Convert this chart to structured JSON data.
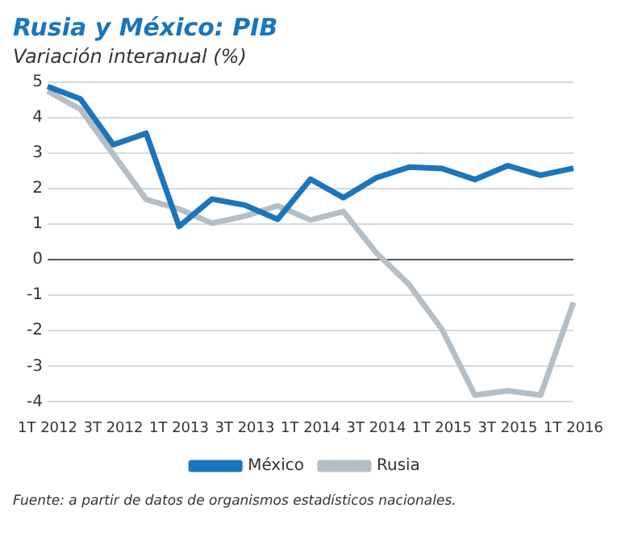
{
  "chart_data": {
    "type": "line",
    "title": "Rusia y México: PIB",
    "subtitle": "Variación interanual (%)",
    "categories": [
      "1T 2012",
      null,
      "3T 2012",
      null,
      "1T 2013",
      null,
      "3T 2013",
      null,
      "1T 2014",
      null,
      "3T 2014",
      null,
      "1T 2015",
      null,
      "3T 2015",
      null,
      "1T 2016"
    ],
    "series": [
      {
        "name": "México",
        "color": "#1a75bc",
        "values": [
          4.88,
          4.53,
          3.24,
          3.56,
          0.94,
          1.71,
          1.54,
          1.14,
          2.27,
          1.75,
          2.31,
          2.61,
          2.57,
          2.26,
          2.65,
          2.38,
          2.58
        ]
      },
      {
        "name": "Rusia",
        "color": "#b4bec4",
        "values": [
          4.75,
          4.24,
          2.97,
          1.7,
          1.43,
          1.03,
          1.23,
          1.52,
          1.12,
          1.36,
          0.2,
          -0.7,
          -1.96,
          -3.81,
          -3.69,
          -3.81,
          -1.2
        ]
      }
    ],
    "ylim": [
      -4,
      5
    ],
    "yticks": [
      -4,
      -3,
      -2,
      -1,
      0,
      1,
      2,
      3,
      4,
      5
    ],
    "grid": "y",
    "legend": "bottom",
    "marker": "none",
    "line_style": "solid",
    "annotations": [
      "Fuente: a partir de datos de organismos estadísticos nacionales."
    ]
  }
}
